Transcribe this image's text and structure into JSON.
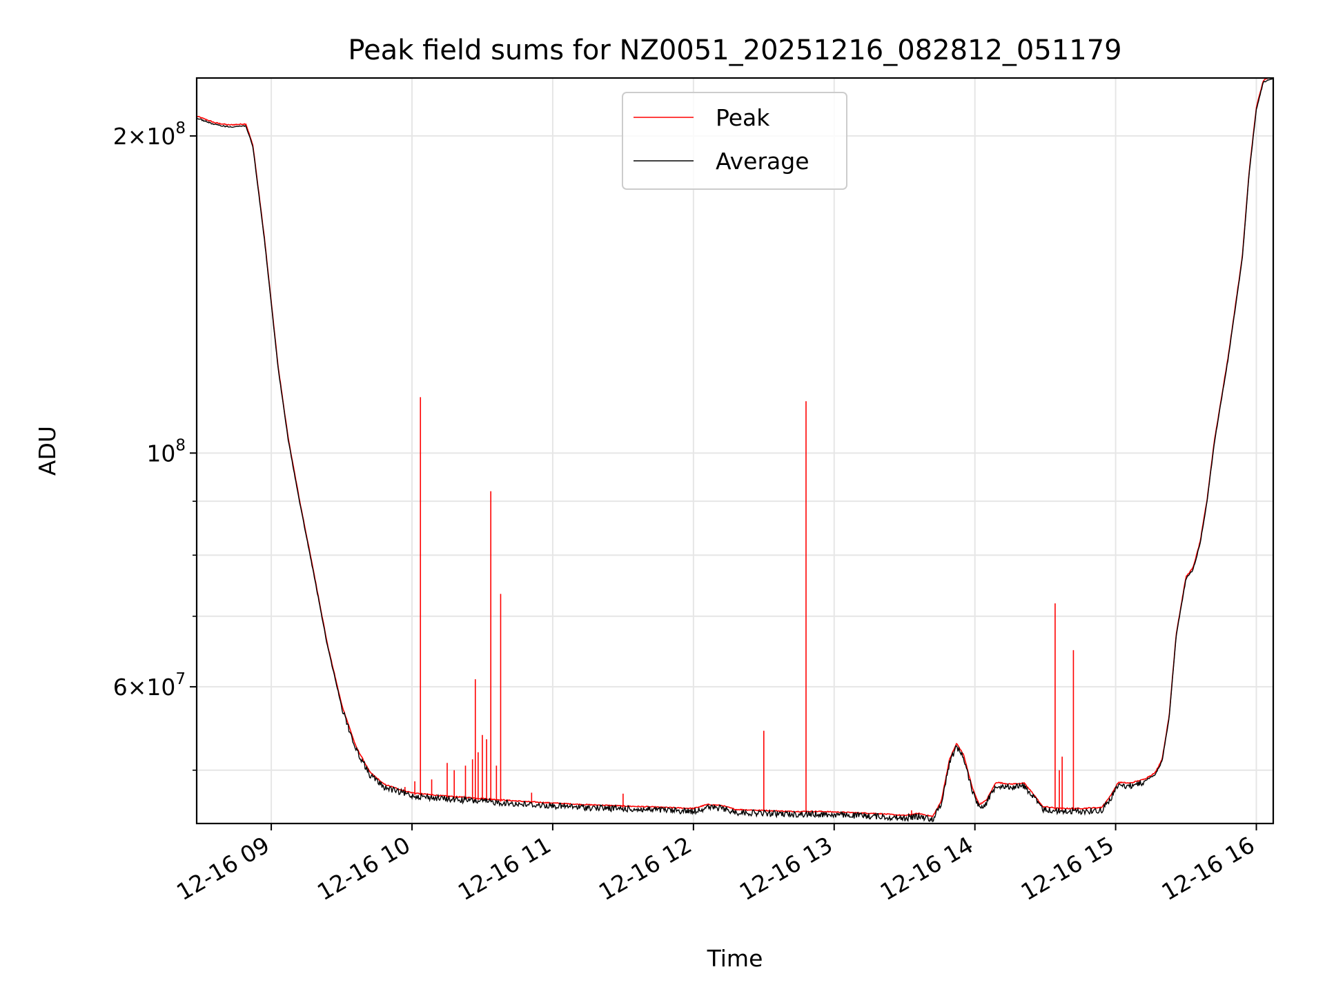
{
  "chart_data": {
    "type": "line",
    "title": "Peak field sums for NZ0051_20251216_082812_051179",
    "xlabel": "Time",
    "ylabel": "ADU",
    "yscale": "log",
    "grid": true,
    "legend_position": "top-center",
    "x_unit": "hours since 12-16 08:00",
    "xlim": [
      0.47,
      8.12
    ],
    "ylim": [
      44500000,
      227000000
    ],
    "x_ticks": [
      {
        "value": 1,
        "label": "12-16 09"
      },
      {
        "value": 2,
        "label": "12-16 10"
      },
      {
        "value": 3,
        "label": "12-16 11"
      },
      {
        "value": 4,
        "label": "12-16 12"
      },
      {
        "value": 5,
        "label": "12-16 13"
      },
      {
        "value": 6,
        "label": "12-16 14"
      },
      {
        "value": 7,
        "label": "12-16 15"
      },
      {
        "value": 8,
        "label": "12-16 16"
      }
    ],
    "y_major_ticks": [
      {
        "value": 200000000,
        "base": "2",
        "times": "×",
        "mantissa": "10",
        "exp": "8"
      },
      {
        "value": 100000000,
        "base": "",
        "times": "",
        "mantissa": "10",
        "exp": "8"
      },
      {
        "value": 60000000,
        "base": "6",
        "times": "×",
        "mantissa": "10",
        "exp": "7"
      }
    ],
    "y_minor_ticks": [
      50000000,
      70000000,
      80000000,
      90000000
    ],
    "series": [
      {
        "name": "Average",
        "color": "#000000",
        "points": [
          [
            0.47,
            208000000
          ],
          [
            0.6,
            205000000
          ],
          [
            0.7,
            204000000
          ],
          [
            0.82,
            204500000
          ],
          [
            0.87,
            195000000
          ],
          [
            0.95,
            160000000
          ],
          [
            1.05,
            120000000
          ],
          [
            1.12,
            103000000
          ],
          [
            1.2,
            90000000
          ],
          [
            1.3,
            77000000
          ],
          [
            1.4,
            65500000
          ],
          [
            1.5,
            57500000
          ],
          [
            1.6,
            52500000
          ],
          [
            1.7,
            49600000
          ],
          [
            1.8,
            48300000
          ],
          [
            1.9,
            47800000
          ],
          [
            2.0,
            47400000
          ],
          [
            2.2,
            47100000
          ],
          [
            2.4,
            46900000
          ],
          [
            2.6,
            46700000
          ],
          [
            2.8,
            46500000
          ],
          [
            3.0,
            46350000
          ],
          [
            3.2,
            46200000
          ],
          [
            3.4,
            46100000
          ],
          [
            3.6,
            46000000
          ],
          [
            3.8,
            45900000
          ],
          [
            4.0,
            45800000
          ],
          [
            4.1,
            46200000
          ],
          [
            4.2,
            46100000
          ],
          [
            4.3,
            45700000
          ],
          [
            4.5,
            45600000
          ],
          [
            4.7,
            45500000
          ],
          [
            4.9,
            45500000
          ],
          [
            5.1,
            45400000
          ],
          [
            5.3,
            45300000
          ],
          [
            5.5,
            45100000
          ],
          [
            5.6,
            45300000
          ],
          [
            5.7,
            45000000
          ],
          [
            5.76,
            46500000
          ],
          [
            5.82,
            51000000
          ],
          [
            5.87,
            52800000
          ],
          [
            5.92,
            51500000
          ],
          [
            5.98,
            48000000
          ],
          [
            6.03,
            46200000
          ],
          [
            6.08,
            46600000
          ],
          [
            6.15,
            48500000
          ],
          [
            6.25,
            48300000
          ],
          [
            6.35,
            48400000
          ],
          [
            6.42,
            47200000
          ],
          [
            6.48,
            46000000
          ],
          [
            6.6,
            45800000
          ],
          [
            6.75,
            45800000
          ],
          [
            6.9,
            45900000
          ],
          [
            6.96,
            47000000
          ],
          [
            7.02,
            48500000
          ],
          [
            7.1,
            48400000
          ],
          [
            7.2,
            48800000
          ],
          [
            7.28,
            49500000
          ],
          [
            7.33,
            51000000
          ],
          [
            7.38,
            56000000
          ],
          [
            7.43,
            67000000
          ],
          [
            7.5,
            76000000
          ],
          [
            7.55,
            77500000
          ],
          [
            7.6,
            82000000
          ],
          [
            7.65,
            90000000
          ],
          [
            7.7,
            102000000
          ],
          [
            7.8,
            123000000
          ],
          [
            7.9,
            153000000
          ],
          [
            7.95,
            185000000
          ],
          [
            8.0,
            212000000
          ],
          [
            8.05,
            225000000
          ],
          [
            8.12,
            227000000
          ]
        ]
      },
      {
        "name": "Peak",
        "color": "#ff0000",
        "spikes": [
          [
            1.95,
            48200000
          ],
          [
            2.02,
            48800000
          ],
          [
            2.06,
            113000000
          ],
          [
            2.14,
            49000000
          ],
          [
            2.25,
            50800000
          ],
          [
            2.3,
            50000000
          ],
          [
            2.38,
            50500000
          ],
          [
            2.43,
            51200000
          ],
          [
            2.45,
            61000000
          ],
          [
            2.47,
            52000000
          ],
          [
            2.5,
            54000000
          ],
          [
            2.53,
            53500000
          ],
          [
            2.56,
            92000000
          ],
          [
            2.6,
            50500000
          ],
          [
            2.63,
            73500000
          ],
          [
            2.85,
            47600000
          ],
          [
            3.5,
            47500000
          ],
          [
            4.5,
            54500000
          ],
          [
            4.8,
            112000000
          ],
          [
            5.55,
            45800000
          ],
          [
            6.57,
            72000000
          ],
          [
            6.6,
            50000000
          ],
          [
            6.62,
            51500000
          ],
          [
            6.7,
            65000000
          ]
        ]
      }
    ]
  }
}
